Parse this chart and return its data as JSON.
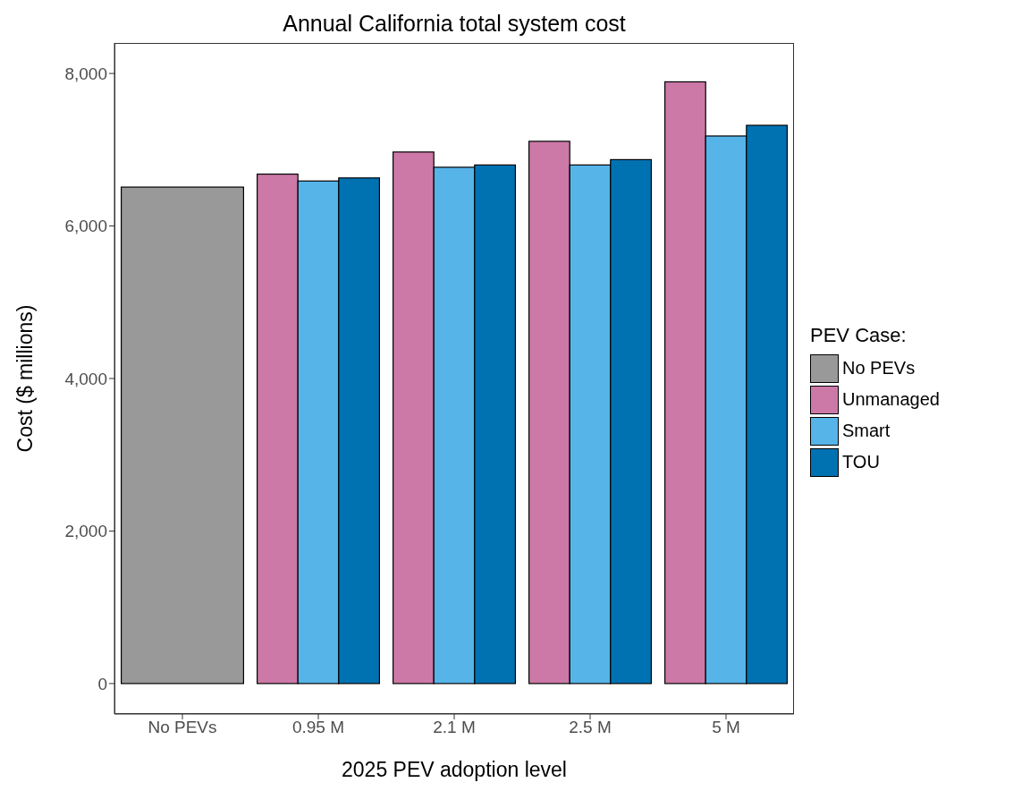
{
  "chart_data": {
    "type": "bar",
    "title": "Annual California total system cost",
    "xlabel": "2025 PEV adoption level",
    "ylabel": "Cost ($ millions)",
    "legend_title": "PEV Case:",
    "categories": [
      "No PEVs",
      "0.95 M",
      "2.1 M",
      "2.5 M",
      "5 M"
    ],
    "series": [
      {
        "name": "No PEVs",
        "color": "#999999",
        "values": [
          6510,
          null,
          null,
          null,
          null
        ]
      },
      {
        "name": "Unmanaged",
        "color": "#cc79a7",
        "values": [
          null,
          6680,
          6970,
          7110,
          7890
        ]
      },
      {
        "name": "Smart",
        "color": "#56b4e9",
        "values": [
          null,
          6590,
          6770,
          6800,
          7180
        ]
      },
      {
        "name": "TOU",
        "color": "#0072b2",
        "values": [
          null,
          6630,
          6800,
          6870,
          7320
        ]
      }
    ],
    "ylim": [
      -400,
      8400
    ],
    "yticks": [
      {
        "value": 0,
        "label": "0"
      },
      {
        "value": 2000,
        "label": "2,000"
      },
      {
        "value": 4000,
        "label": "4,000"
      },
      {
        "value": 6000,
        "label": "6,000"
      },
      {
        "value": 8000,
        "label": "8,000"
      }
    ],
    "grid": false,
    "legend": "right"
  }
}
